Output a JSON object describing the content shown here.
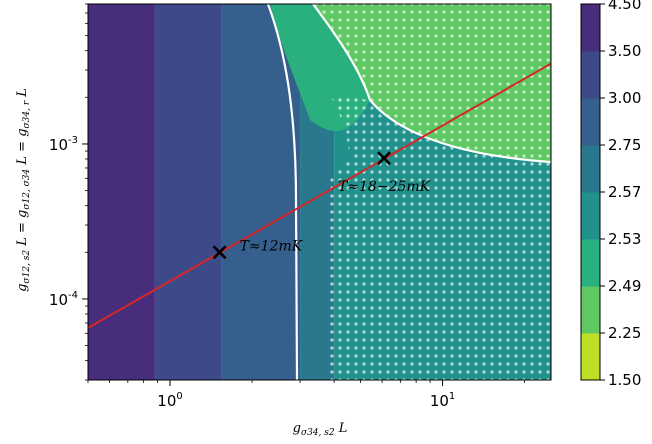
{
  "chart_data": {
    "type": "heatmap",
    "xlabel": "g_{σ34,s2} L",
    "ylabel": "g_{σ12,s2} L = g_{σ12,σ34} L = g_{σ34,r} L",
    "xscale": "log",
    "yscale": "log",
    "xlim": [
      0.5,
      25
    ],
    "ylim": [
      3e-05,
      0.008
    ],
    "x_ticks": [
      {
        "value": 1,
        "label": "10",
        "exp": "0"
      },
      {
        "value": 10,
        "label": "10",
        "exp": "1"
      }
    ],
    "y_ticks": [
      {
        "value": 0.0001,
        "label": "10",
        "exp": "-4"
      },
      {
        "value": 0.001,
        "label": "10",
        "exp": "-3"
      }
    ],
    "colorbar": {
      "levels": [
        "1.50",
        "2.25",
        "2.49",
        "2.53",
        "2.57",
        "2.75",
        "3.00",
        "3.50",
        "4.50"
      ],
      "colors": [
        "#bddf26",
        "#5ec962",
        "#2ab07f",
        "#21918c",
        "#2a788e",
        "#355f8d",
        "#3e4989",
        "#472d7b",
        "#440154"
      ]
    },
    "contour_bands": [
      {
        "x_from": 0.5,
        "x_to": 0.88,
        "color": "#472d7b"
      },
      {
        "x_from": 0.88,
        "x_to": 1.55,
        "color": "#3e4989"
      },
      {
        "x_from": 1.55,
        "x_to": 3.0,
        "color": "#355f8d"
      },
      {
        "x_from": 3.0,
        "x_to": 4.0,
        "color": "#2a788e"
      },
      {
        "x_from": 4.0,
        "x_to": 25,
        "color": "#21918c"
      }
    ],
    "white_boundary": {
      "points": [
        [
          3.0,
          3e-05
        ],
        [
          2.95,
          0.0006
        ],
        [
          2.6,
          0.004
        ],
        [
          2.5,
          0.008
        ]
      ]
    },
    "red_line": {
      "points": [
        [
          0.5,
          6.5e-05
        ],
        [
          25,
          0.0033
        ]
      ],
      "color": "#d62728"
    },
    "markers": [
      {
        "x": 1.52,
        "y": 0.0002,
        "label": "T≈12mK"
      },
      {
        "x": 6.1,
        "y": 0.00081,
        "label": "T≈18−25mK"
      }
    ]
  }
}
